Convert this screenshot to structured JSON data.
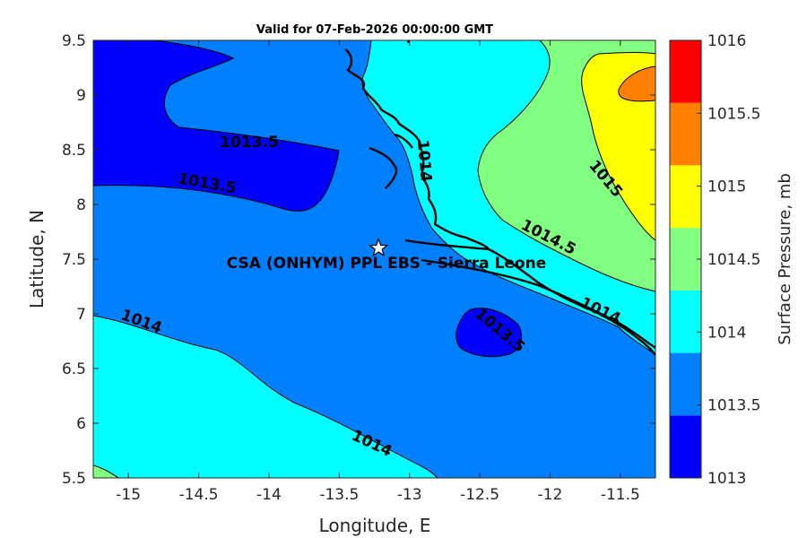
{
  "chart_data": {
    "type": "contour",
    "title": "Valid for 07-Feb-2026 00:00:00 GMT",
    "xlabel": "Longitude, E",
    "ylabel": "Latitude, N",
    "xlim": [
      -15.25,
      -11.25
    ],
    "ylim": [
      5.5,
      9.5
    ],
    "x_ticks": [
      "-15",
      "-14.5",
      "-14",
      "-13.5",
      "-13",
      "-12.5",
      "-12",
      "-11.5"
    ],
    "y_ticks": [
      "5.5",
      "6",
      "6.5",
      "7",
      "7.5",
      "8",
      "8.5",
      "9",
      "9.5"
    ],
    "colorbar": {
      "label": "Surface Pressure, mb",
      "levels": [
        "1013",
        "1013.5",
        "1014",
        "1014.5",
        "1015",
        "1015.5",
        "1016"
      ],
      "colors": [
        "#0000ff",
        "#0080ff",
        "#00ffff",
        "#80ff80",
        "#ffff00",
        "#ff8000",
        "#ff0000"
      ]
    },
    "contour_labels": [
      "1013.5",
      "1013.5",
      "1014",
      "1014",
      "1014",
      "1014.5",
      "1014",
      "1015",
      "1013.5"
    ],
    "marker": {
      "symbol": "star",
      "lon": -13.22,
      "lat": 7.6,
      "label": "CSA (ONHYM) PPL EBS  - Sierra Leone"
    }
  }
}
